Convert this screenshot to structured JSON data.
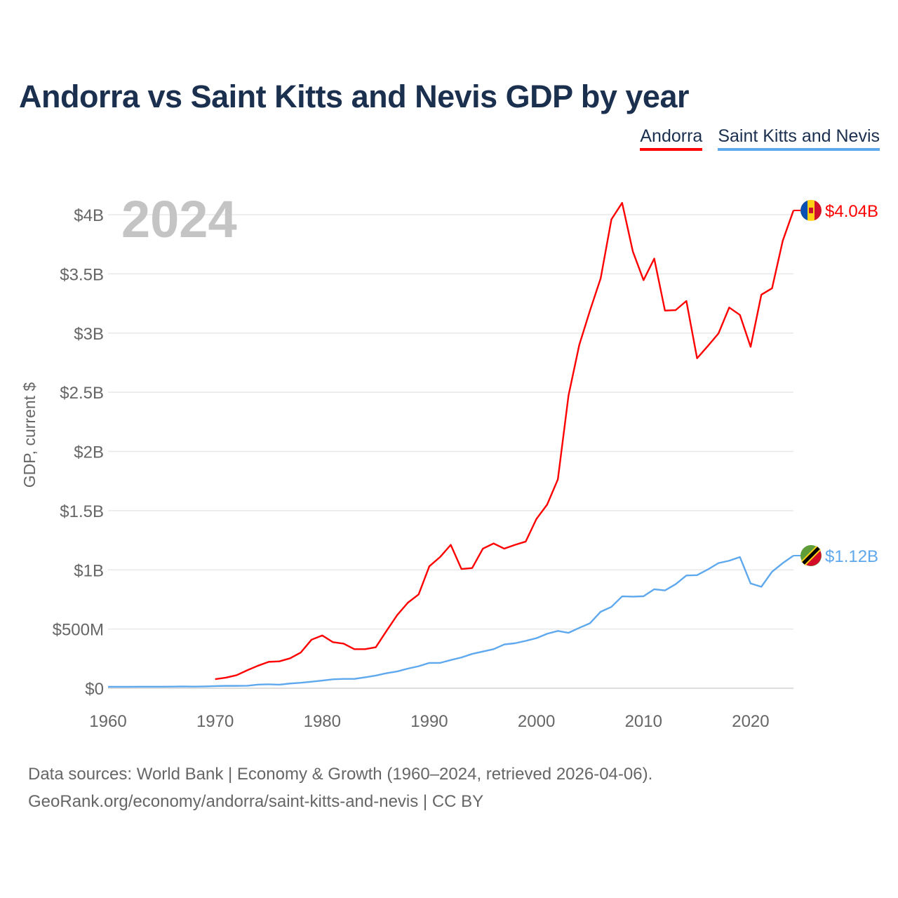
{
  "title": "Andorra vs Saint Kitts and Nevis GDP by year",
  "legend": [
    {
      "name": "Andorra",
      "color": "#ff0000"
    },
    {
      "name": "Saint Kitts and Nevis",
      "color": "#5ea8ee"
    }
  ],
  "footer": {
    "line1": "Data sources: World Bank | Economy & Growth (1960–2024, retrieved 2026-04-06).",
    "line2": "GeoRank.org/economy/andorra/saint-kitts-and-nevis | CC BY"
  },
  "chart_data": {
    "type": "line",
    "title": "Andorra vs Saint Kitts and Nevis GDP by year",
    "ylabel": "GDP, current $",
    "xlabel": "",
    "year_label": "2024",
    "xlim": [
      1960,
      2024
    ],
    "ylim": [
      0,
      4.2
    ],
    "unit": "billions USD",
    "x_ticks": [
      1960,
      1970,
      1980,
      1990,
      2000,
      2010,
      2020
    ],
    "y_ticks": [
      {
        "value": 0,
        "label": "$0"
      },
      {
        "value": 0.5,
        "label": "$500M"
      },
      {
        "value": 1,
        "label": "$1B"
      },
      {
        "value": 1.5,
        "label": "$1.5B"
      },
      {
        "value": 2,
        "label": "$2B"
      },
      {
        "value": 2.5,
        "label": "$2.5B"
      },
      {
        "value": 3,
        "label": "$3B"
      },
      {
        "value": 3.5,
        "label": "$3.5B"
      },
      {
        "value": 4,
        "label": "$4B"
      }
    ],
    "grid": true,
    "legend_position": "top-right",
    "series": [
      {
        "name": "Andorra",
        "color": "#ff0000",
        "end_label": "$4.04B",
        "start_year": 1970,
        "values": [
          0.077,
          0.089,
          0.11,
          0.152,
          0.19,
          0.223,
          0.227,
          0.253,
          0.302,
          0.41,
          0.446,
          0.389,
          0.377,
          0.33,
          0.33,
          0.346,
          0.484,
          0.618,
          0.723,
          0.792,
          1.03,
          1.108,
          1.211,
          1.007,
          1.015,
          1.179,
          1.223,
          1.179,
          1.211,
          1.239,
          1.43,
          1.551,
          1.764,
          2.475,
          2.9,
          3.19,
          3.463,
          3.96,
          4.1,
          3.69,
          3.447,
          3.629,
          3.19,
          3.194,
          3.271,
          2.787,
          2.89,
          2.997,
          3.216,
          3.153,
          2.884,
          3.324,
          3.378,
          3.78,
          4.036
        ]
      },
      {
        "name": "Saint Kitts and Nevis",
        "color": "#5ea8ee",
        "end_label": "$1.12B",
        "start_year": 1960,
        "values": [
          0.012,
          0.012,
          0.012,
          0.013,
          0.013,
          0.013,
          0.014,
          0.015,
          0.014,
          0.015,
          0.018,
          0.02,
          0.02,
          0.021,
          0.031,
          0.033,
          0.03,
          0.04,
          0.046,
          0.055,
          0.065,
          0.075,
          0.079,
          0.079,
          0.092,
          0.107,
          0.127,
          0.142,
          0.166,
          0.186,
          0.214,
          0.214,
          0.238,
          0.26,
          0.29,
          0.31,
          0.33,
          0.37,
          0.38,
          0.4,
          0.423,
          0.46,
          0.484,
          0.468,
          0.51,
          0.549,
          0.646,
          0.687,
          0.776,
          0.774,
          0.777,
          0.836,
          0.826,
          0.879,
          0.952,
          0.955,
          1.003,
          1.057,
          1.077,
          1.108,
          0.885,
          0.857,
          0.984,
          1.057,
          1.12
        ]
      }
    ]
  }
}
